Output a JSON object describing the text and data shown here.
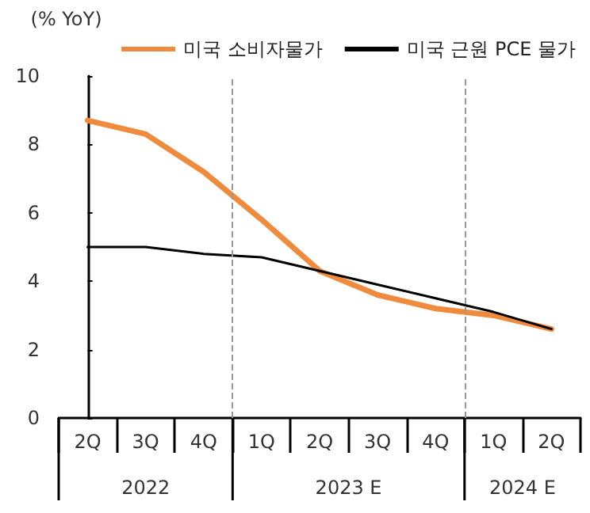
{
  "chart_data": {
    "type": "line",
    "ylabel": "(% YoY)",
    "categories": [
      "2Q",
      "3Q",
      "4Q",
      "1Q",
      "2Q",
      "3Q",
      "4Q",
      "1Q",
      "2Q"
    ],
    "series": [
      {
        "name": "미국 소비자물가",
        "color": "#f08a3c",
        "values": [
          8.7,
          8.3,
          7.2,
          5.8,
          4.3,
          3.6,
          3.2,
          3.0,
          2.6
        ]
      },
      {
        "name": "미국 근원 PCE 물가",
        "color": "#000000",
        "values": [
          5.0,
          5.0,
          4.8,
          4.7,
          4.3,
          3.9,
          3.5,
          3.1,
          2.6
        ]
      }
    ],
    "ylim": [
      0,
      10
    ],
    "yticks": [
      0,
      2,
      4,
      6,
      8,
      10
    ],
    "grid": false,
    "legend": "top right",
    "marker": "none",
    "annotations": [
      "2022",
      "2023 E",
      "2024 E"
    ]
  }
}
